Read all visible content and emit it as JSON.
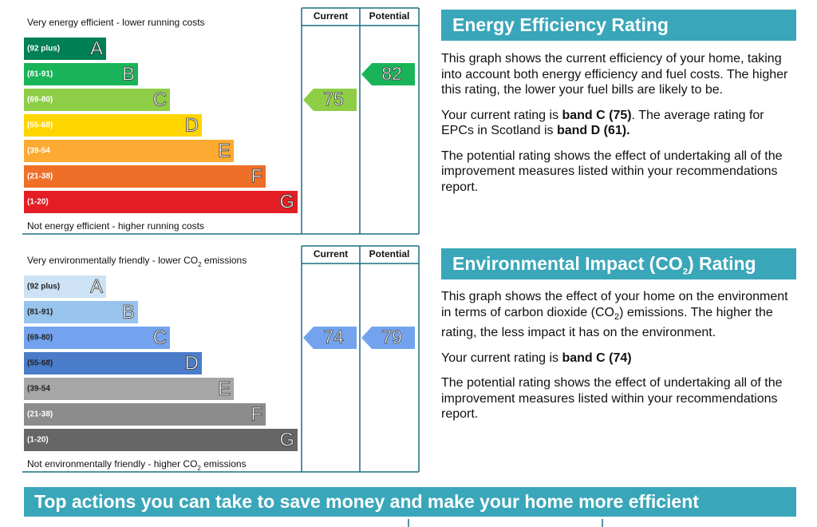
{
  "energy": {
    "chart": {
      "top_label": [
        {
          "text": "Very energy efficient - lower running costs"
        }
      ],
      "bottom_label": [
        {
          "text": "Not energy efficient - higher running costs"
        }
      ],
      "headers": [
        "Current",
        "Potential"
      ],
      "bands": [
        {
          "range": "(92 plus)",
          "letter": "A",
          "color": "#008054",
          "label_color": "#ffffff"
        },
        {
          "range": "(81-91)",
          "letter": "B",
          "color": "#19b459",
          "label_color": "#ffffff"
        },
        {
          "range": "(69-80)",
          "letter": "C",
          "color": "#8dce46",
          "label_color": "#ffffff"
        },
        {
          "range": "(55-68)",
          "letter": "D",
          "color": "#ffd500",
          "label_color": "#ffffff"
        },
        {
          "range": "(39-54",
          "letter": "E",
          "color": "#fcaa31",
          "label_color": "#ffffff"
        },
        {
          "range": "(21-38)",
          "letter": "F",
          "color": "#ef6f28",
          "label_color": "#ffffff"
        },
        {
          "range": "(1-20)",
          "letter": "G",
          "color": "#e31d23",
          "label_color": "#ffffff"
        }
      ],
      "current": 75,
      "potential": 82
    },
    "heading": [
      {
        "text": "Energy Efficiency Rating"
      }
    ],
    "paragraphs": [
      [
        {
          "text": "This graph shows the current efficiency of your home, taking into account both energy efficiency and fuel costs. The higher this rating, the lower your fuel bills are likely to be."
        }
      ],
      [
        {
          "text": "Your current rating is "
        },
        {
          "text": "band C (75)",
          "bold": true
        },
        {
          "text": ". The average rating for EPCs in Scotland is "
        },
        {
          "text": "band D (61).",
          "bold": true
        }
      ],
      [
        {
          "text": "The potential rating shows the effect of undertaking all of the improvement measures listed within your recommendations report."
        }
      ]
    ]
  },
  "environment": {
    "chart": {
      "top_label": [
        {
          "text": "Very environmentally friendly - lower CO"
        },
        {
          "text": "2",
          "sub": true
        },
        {
          "text": " emissions"
        }
      ],
      "bottom_label": [
        {
          "text": "Not environmentally friendly - higher CO"
        },
        {
          "text": "2",
          "sub": true
        },
        {
          "text": " emissions"
        }
      ],
      "headers": [
        "Current",
        "Potential"
      ],
      "bands": [
        {
          "range": "(92 plus)",
          "letter": "A",
          "color": "#cde3f5",
          "label_color": "#222222"
        },
        {
          "range": "(81-91)",
          "letter": "B",
          "color": "#97c3ed",
          "label_color": "#222222"
        },
        {
          "range": "(69-80)",
          "letter": "C",
          "color": "#73a3ee",
          "label_color": "#222222"
        },
        {
          "range": "(55-68)",
          "letter": "D",
          "color": "#4a7cc9",
          "label_color": "#222222"
        },
        {
          "range": "(39-54",
          "letter": "E",
          "color": "#a6a6a6",
          "label_color": "#222222"
        },
        {
          "range": "(21-38)",
          "letter": "F",
          "color": "#8c8c8c",
          "label_color": "#ffffff"
        },
        {
          "range": "(1-20)",
          "letter": "G",
          "color": "#666666",
          "label_color": "#ffffff"
        }
      ],
      "current": 74,
      "potential": 79
    },
    "heading": [
      {
        "text": "Environmental Impact (CO"
      },
      {
        "text": "2",
        "sub": true
      },
      {
        "text": ") Rating"
      }
    ],
    "paragraphs": [
      [
        {
          "text": "This graph shows the effect of your home on the environment in terms of carbon dioxide (CO"
        },
        {
          "text": "2",
          "sub": true
        },
        {
          "text": ") emissions. The higher the rating, the less impact it has on the environment."
        }
      ],
      [
        {
          "text": "Your current rating is "
        },
        {
          "text": "band C (74)",
          "bold": true
        }
      ],
      [
        {
          "text": "The potential rating shows the effect of undertaking all of the improvement measures listed within your recommendations report."
        }
      ]
    ]
  },
  "banner": "Top actions you can take to save money and make your home more efficient"
}
